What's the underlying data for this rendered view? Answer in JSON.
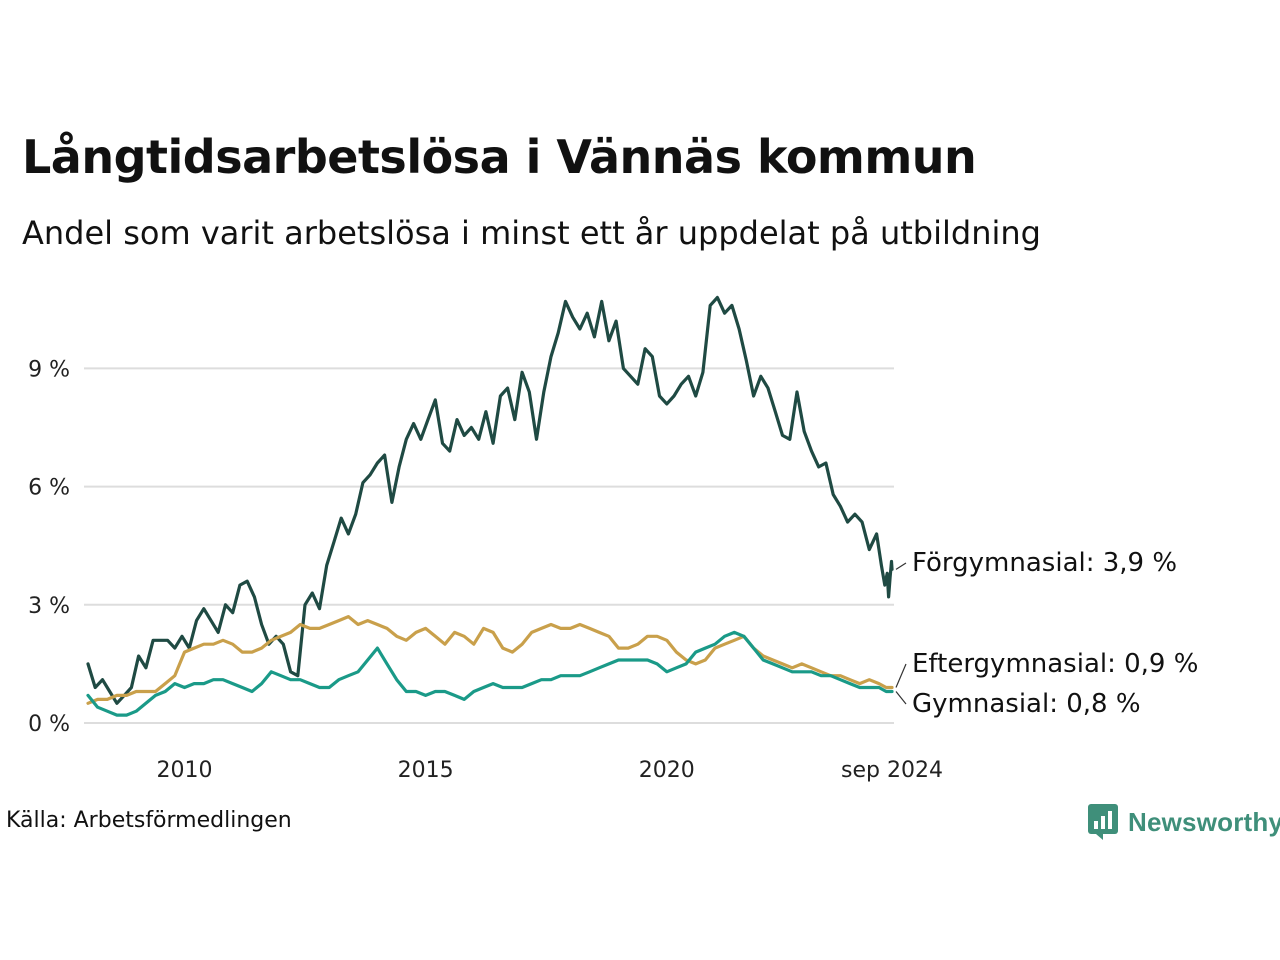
{
  "header": {
    "title": "Långtidsarbetslösa i Vännäs kommun",
    "subtitle": "Andel som varit arbetslösa i minst ett år uppdelat på utbildning"
  },
  "footer": {
    "source": "Källa: Arbetsförmedlingen",
    "logo_text": "Newsworthy"
  },
  "colors": {
    "forgymnasial": "#1f4a43",
    "gymnasial": "#1a9a88",
    "eftergymnasial": "#c9a04b",
    "grid": "#dddddd",
    "logo": "#3f8f7a"
  },
  "chart_data": {
    "type": "line",
    "x_unit": "year",
    "xlim": [
      2008.0,
      2024.67
    ],
    "ylim": [
      0,
      10.9
    ],
    "y_ticks": [
      0,
      3,
      6,
      9
    ],
    "y_tick_labels": [
      "0 %",
      "3 %",
      "6 %",
      "9 %"
    ],
    "x_ticks": [
      2010,
      2015,
      2020,
      2024.67
    ],
    "x_tick_labels": [
      "2010",
      "2015",
      "2020",
      "sep 2024"
    ],
    "grid": true,
    "legend": "end-labels",
    "series": [
      {
        "key": "forgymnasial",
        "name": "Förgymnasial",
        "end_label": "Förgymnasial: 3,9 %",
        "points": [
          [
            2008.0,
            1.5
          ],
          [
            2008.15,
            0.9
          ],
          [
            2008.3,
            1.1
          ],
          [
            2008.45,
            0.8
          ],
          [
            2008.6,
            0.5
          ],
          [
            2008.75,
            0.7
          ],
          [
            2008.9,
            0.9
          ],
          [
            2009.05,
            1.7
          ],
          [
            2009.2,
            1.4
          ],
          [
            2009.35,
            2.1
          ],
          [
            2009.5,
            2.1
          ],
          [
            2009.65,
            2.1
          ],
          [
            2009.8,
            1.9
          ],
          [
            2009.95,
            2.2
          ],
          [
            2010.1,
            1.9
          ],
          [
            2010.25,
            2.6
          ],
          [
            2010.4,
            2.9
          ],
          [
            2010.55,
            2.6
          ],
          [
            2010.7,
            2.3
          ],
          [
            2010.85,
            3.0
          ],
          [
            2011.0,
            2.8
          ],
          [
            2011.15,
            3.5
          ],
          [
            2011.3,
            3.6
          ],
          [
            2011.45,
            3.2
          ],
          [
            2011.6,
            2.5
          ],
          [
            2011.75,
            2.0
          ],
          [
            2011.9,
            2.2
          ],
          [
            2012.05,
            2.0
          ],
          [
            2012.2,
            1.3
          ],
          [
            2012.35,
            1.2
          ],
          [
            2012.5,
            3.0
          ],
          [
            2012.65,
            3.3
          ],
          [
            2012.8,
            2.9
          ],
          [
            2012.95,
            4.0
          ],
          [
            2013.1,
            4.6
          ],
          [
            2013.25,
            5.2
          ],
          [
            2013.4,
            4.8
          ],
          [
            2013.55,
            5.3
          ],
          [
            2013.7,
            6.1
          ],
          [
            2013.85,
            6.3
          ],
          [
            2014.0,
            6.6
          ],
          [
            2014.15,
            6.8
          ],
          [
            2014.3,
            5.6
          ],
          [
            2014.45,
            6.5
          ],
          [
            2014.6,
            7.2
          ],
          [
            2014.75,
            7.6
          ],
          [
            2014.9,
            7.2
          ],
          [
            2015.05,
            7.7
          ],
          [
            2015.2,
            8.2
          ],
          [
            2015.35,
            7.1
          ],
          [
            2015.5,
            6.9
          ],
          [
            2015.65,
            7.7
          ],
          [
            2015.8,
            7.3
          ],
          [
            2015.95,
            7.5
          ],
          [
            2016.1,
            7.2
          ],
          [
            2016.25,
            7.9
          ],
          [
            2016.4,
            7.1
          ],
          [
            2016.55,
            8.3
          ],
          [
            2016.7,
            8.5
          ],
          [
            2016.85,
            7.7
          ],
          [
            2017.0,
            8.9
          ],
          [
            2017.15,
            8.4
          ],
          [
            2017.3,
            7.2
          ],
          [
            2017.45,
            8.4
          ],
          [
            2017.6,
            9.3
          ],
          [
            2017.75,
            9.9
          ],
          [
            2017.9,
            10.7
          ],
          [
            2018.05,
            10.3
          ],
          [
            2018.2,
            10.0
          ],
          [
            2018.35,
            10.4
          ],
          [
            2018.5,
            9.8
          ],
          [
            2018.65,
            10.7
          ],
          [
            2018.8,
            9.7
          ],
          [
            2018.95,
            10.2
          ],
          [
            2019.1,
            9.0
          ],
          [
            2019.25,
            8.8
          ],
          [
            2019.4,
            8.6
          ],
          [
            2019.55,
            9.5
          ],
          [
            2019.7,
            9.3
          ],
          [
            2019.85,
            8.3
          ],
          [
            2020.0,
            8.1
          ],
          [
            2020.15,
            8.3
          ],
          [
            2020.3,
            8.6
          ],
          [
            2020.45,
            8.8
          ],
          [
            2020.6,
            8.3
          ],
          [
            2020.75,
            8.9
          ],
          [
            2020.9,
            10.6
          ],
          [
            2021.05,
            10.8
          ],
          [
            2021.2,
            10.4
          ],
          [
            2021.35,
            10.6
          ],
          [
            2021.5,
            10.0
          ],
          [
            2021.65,
            9.2
          ],
          [
            2021.8,
            8.3
          ],
          [
            2021.95,
            8.8
          ],
          [
            2022.1,
            8.5
          ],
          [
            2022.25,
            7.9
          ],
          [
            2022.4,
            7.3
          ],
          [
            2022.55,
            7.2
          ],
          [
            2022.7,
            8.4
          ],
          [
            2022.85,
            7.4
          ],
          [
            2023.0,
            6.9
          ],
          [
            2023.15,
            6.5
          ],
          [
            2023.3,
            6.6
          ],
          [
            2023.45,
            5.8
          ],
          [
            2023.6,
            5.5
          ],
          [
            2023.75,
            5.1
          ],
          [
            2023.9,
            5.3
          ],
          [
            2024.05,
            5.1
          ],
          [
            2024.2,
            4.4
          ],
          [
            2024.35,
            4.8
          ],
          [
            2024.45,
            4.0
          ],
          [
            2024.52,
            3.5
          ],
          [
            2024.57,
            3.8
          ],
          [
            2024.6,
            3.2
          ],
          [
            2024.63,
            3.7
          ],
          [
            2024.66,
            4.1
          ],
          [
            2024.67,
            3.9
          ]
        ]
      },
      {
        "key": "eftergymnasial",
        "name": "Eftergymnasial",
        "end_label": "Eftergymnasial: 0,9 %",
        "points": [
          [
            2008.0,
            0.5
          ],
          [
            2008.2,
            0.6
          ],
          [
            2008.4,
            0.6
          ],
          [
            2008.6,
            0.7
          ],
          [
            2008.8,
            0.7
          ],
          [
            2009.0,
            0.8
          ],
          [
            2009.2,
            0.8
          ],
          [
            2009.4,
            0.8
          ],
          [
            2009.6,
            1.0
          ],
          [
            2009.8,
            1.2
          ],
          [
            2010.0,
            1.8
          ],
          [
            2010.2,
            1.9
          ],
          [
            2010.4,
            2.0
          ],
          [
            2010.6,
            2.0
          ],
          [
            2010.8,
            2.1
          ],
          [
            2011.0,
            2.0
          ],
          [
            2011.2,
            1.8
          ],
          [
            2011.4,
            1.8
          ],
          [
            2011.6,
            1.9
          ],
          [
            2011.8,
            2.1
          ],
          [
            2012.0,
            2.2
          ],
          [
            2012.2,
            2.3
          ],
          [
            2012.4,
            2.5
          ],
          [
            2012.6,
            2.4
          ],
          [
            2012.8,
            2.4
          ],
          [
            2013.0,
            2.5
          ],
          [
            2013.2,
            2.6
          ],
          [
            2013.4,
            2.7
          ],
          [
            2013.6,
            2.5
          ],
          [
            2013.8,
            2.6
          ],
          [
            2014.0,
            2.5
          ],
          [
            2014.2,
            2.4
          ],
          [
            2014.4,
            2.2
          ],
          [
            2014.6,
            2.1
          ],
          [
            2014.8,
            2.3
          ],
          [
            2015.0,
            2.4
          ],
          [
            2015.2,
            2.2
          ],
          [
            2015.4,
            2.0
          ],
          [
            2015.6,
            2.3
          ],
          [
            2015.8,
            2.2
          ],
          [
            2016.0,
            2.0
          ],
          [
            2016.2,
            2.4
          ],
          [
            2016.4,
            2.3
          ],
          [
            2016.6,
            1.9
          ],
          [
            2016.8,
            1.8
          ],
          [
            2017.0,
            2.0
          ],
          [
            2017.2,
            2.3
          ],
          [
            2017.4,
            2.4
          ],
          [
            2017.6,
            2.5
          ],
          [
            2017.8,
            2.4
          ],
          [
            2018.0,
            2.4
          ],
          [
            2018.2,
            2.5
          ],
          [
            2018.4,
            2.4
          ],
          [
            2018.6,
            2.3
          ],
          [
            2018.8,
            2.2
          ],
          [
            2019.0,
            1.9
          ],
          [
            2019.2,
            1.9
          ],
          [
            2019.4,
            2.0
          ],
          [
            2019.6,
            2.2
          ],
          [
            2019.8,
            2.2
          ],
          [
            2020.0,
            2.1
          ],
          [
            2020.2,
            1.8
          ],
          [
            2020.4,
            1.6
          ],
          [
            2020.6,
            1.5
          ],
          [
            2020.8,
            1.6
          ],
          [
            2021.0,
            1.9
          ],
          [
            2021.2,
            2.0
          ],
          [
            2021.4,
            2.1
          ],
          [
            2021.6,
            2.2
          ],
          [
            2021.8,
            1.9
          ],
          [
            2022.0,
            1.7
          ],
          [
            2022.2,
            1.6
          ],
          [
            2022.4,
            1.5
          ],
          [
            2022.6,
            1.4
          ],
          [
            2022.8,
            1.5
          ],
          [
            2023.0,
            1.4
          ],
          [
            2023.2,
            1.3
          ],
          [
            2023.4,
            1.2
          ],
          [
            2023.6,
            1.2
          ],
          [
            2023.8,
            1.1
          ],
          [
            2024.0,
            1.0
          ],
          [
            2024.2,
            1.1
          ],
          [
            2024.4,
            1.0
          ],
          [
            2024.55,
            0.9
          ],
          [
            2024.67,
            0.9
          ]
        ]
      },
      {
        "key": "gymnasial",
        "name": "Gymnasial",
        "end_label": "Gymnasial: 0,8 %",
        "points": [
          [
            2008.0,
            0.7
          ],
          [
            2008.2,
            0.4
          ],
          [
            2008.4,
            0.3
          ],
          [
            2008.6,
            0.2
          ],
          [
            2008.8,
            0.2
          ],
          [
            2009.0,
            0.3
          ],
          [
            2009.2,
            0.5
          ],
          [
            2009.4,
            0.7
          ],
          [
            2009.6,
            0.8
          ],
          [
            2009.8,
            1.0
          ],
          [
            2010.0,
            0.9
          ],
          [
            2010.2,
            1.0
          ],
          [
            2010.4,
            1.0
          ],
          [
            2010.6,
            1.1
          ],
          [
            2010.8,
            1.1
          ],
          [
            2011.0,
            1.0
          ],
          [
            2011.2,
            0.9
          ],
          [
            2011.4,
            0.8
          ],
          [
            2011.6,
            1.0
          ],
          [
            2011.8,
            1.3
          ],
          [
            2012.0,
            1.2
          ],
          [
            2012.2,
            1.1
          ],
          [
            2012.4,
            1.1
          ],
          [
            2012.6,
            1.0
          ],
          [
            2012.8,
            0.9
          ],
          [
            2013.0,
            0.9
          ],
          [
            2013.2,
            1.1
          ],
          [
            2013.4,
            1.2
          ],
          [
            2013.6,
            1.3
          ],
          [
            2013.8,
            1.6
          ],
          [
            2014.0,
            1.9
          ],
          [
            2014.2,
            1.5
          ],
          [
            2014.4,
            1.1
          ],
          [
            2014.6,
            0.8
          ],
          [
            2014.8,
            0.8
          ],
          [
            2015.0,
            0.7
          ],
          [
            2015.2,
            0.8
          ],
          [
            2015.4,
            0.8
          ],
          [
            2015.6,
            0.7
          ],
          [
            2015.8,
            0.6
          ],
          [
            2016.0,
            0.8
          ],
          [
            2016.2,
            0.9
          ],
          [
            2016.4,
            1.0
          ],
          [
            2016.6,
            0.9
          ],
          [
            2016.8,
            0.9
          ],
          [
            2017.0,
            0.9
          ],
          [
            2017.2,
            1.0
          ],
          [
            2017.4,
            1.1
          ],
          [
            2017.6,
            1.1
          ],
          [
            2017.8,
            1.2
          ],
          [
            2018.0,
            1.2
          ],
          [
            2018.2,
            1.2
          ],
          [
            2018.4,
            1.3
          ],
          [
            2018.6,
            1.4
          ],
          [
            2018.8,
            1.5
          ],
          [
            2019.0,
            1.6
          ],
          [
            2019.2,
            1.6
          ],
          [
            2019.4,
            1.6
          ],
          [
            2019.6,
            1.6
          ],
          [
            2019.8,
            1.5
          ],
          [
            2020.0,
            1.3
          ],
          [
            2020.2,
            1.4
          ],
          [
            2020.4,
            1.5
          ],
          [
            2020.6,
            1.8
          ],
          [
            2020.8,
            1.9
          ],
          [
            2021.0,
            2.0
          ],
          [
            2021.2,
            2.2
          ],
          [
            2021.4,
            2.3
          ],
          [
            2021.6,
            2.2
          ],
          [
            2021.8,
            1.9
          ],
          [
            2022.0,
            1.6
          ],
          [
            2022.2,
            1.5
          ],
          [
            2022.4,
            1.4
          ],
          [
            2022.6,
            1.3
          ],
          [
            2022.8,
            1.3
          ],
          [
            2023.0,
            1.3
          ],
          [
            2023.2,
            1.2
          ],
          [
            2023.4,
            1.2
          ],
          [
            2023.6,
            1.1
          ],
          [
            2023.8,
            1.0
          ],
          [
            2024.0,
            0.9
          ],
          [
            2024.2,
            0.9
          ],
          [
            2024.4,
            0.9
          ],
          [
            2024.55,
            0.8
          ],
          [
            2024.67,
            0.8
          ]
        ]
      }
    ]
  }
}
